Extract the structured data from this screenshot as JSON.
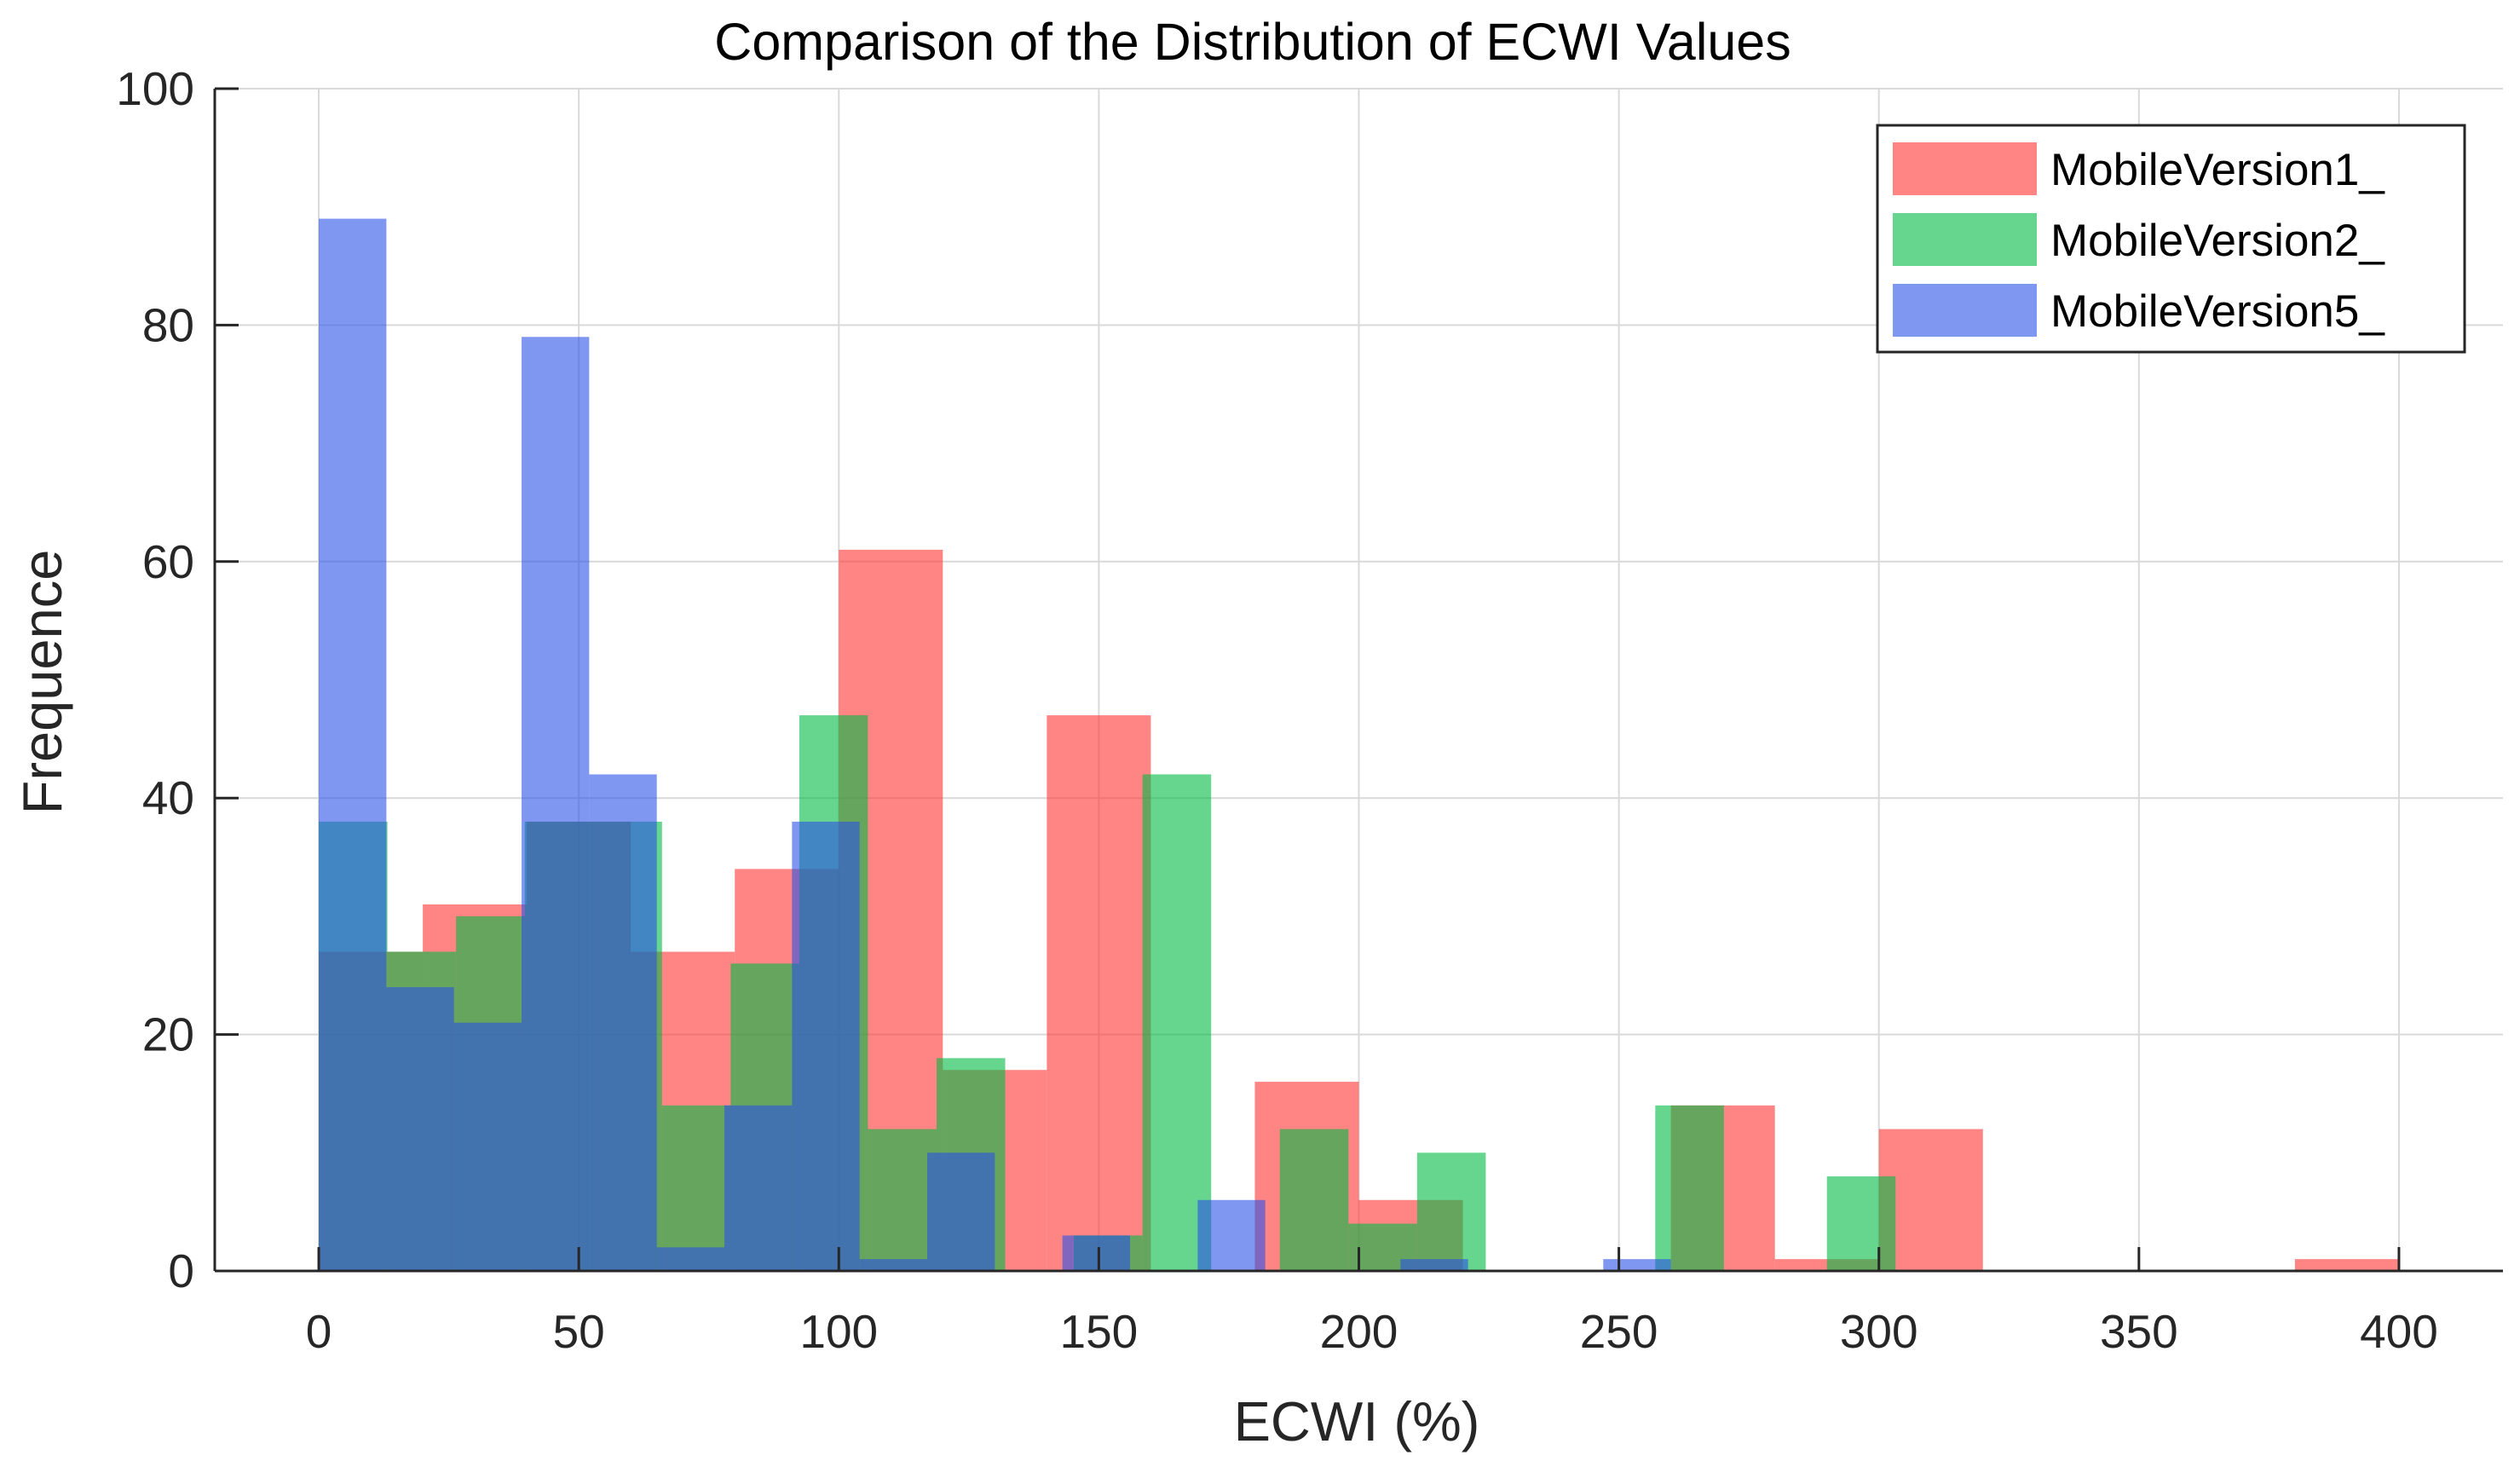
{
  "chart_data": {
    "type": "bar",
    "subtype": "overlapping-histogram",
    "title": "Comparison of the Distribution of ECWI Values",
    "xlabel": "ECWI (%)",
    "ylabel": "Frequence",
    "xlim": [
      -20,
      420
    ],
    "ylim": [
      0,
      100
    ],
    "xticks": [
      0,
      50,
      100,
      150,
      200,
      250,
      300,
      350,
      400
    ],
    "yticks": [
      0,
      20,
      40,
      60,
      80,
      100
    ],
    "grid": true,
    "legend_position": "top-right",
    "bar_opacity": 0.6,
    "series": [
      {
        "name": "MobileVersion1_",
        "color": "#ff3333",
        "bins": [
          {
            "start": 0,
            "end": 20,
            "value": 27
          },
          {
            "start": 20,
            "end": 40,
            "value": 31
          },
          {
            "start": 40,
            "end": 60,
            "value": 38
          },
          {
            "start": 60,
            "end": 80,
            "value": 27
          },
          {
            "start": 80,
            "end": 100,
            "value": 34
          },
          {
            "start": 100,
            "end": 120,
            "value": 61
          },
          {
            "start": 120,
            "end": 140,
            "value": 17
          },
          {
            "start": 140,
            "end": 160,
            "value": 47
          },
          {
            "start": 180,
            "end": 200,
            "value": 16
          },
          {
            "start": 200,
            "end": 220,
            "value": 6
          },
          {
            "start": 260,
            "end": 280,
            "value": 14
          },
          {
            "start": 280,
            "end": 300,
            "value": 1
          },
          {
            "start": 300,
            "end": 320,
            "value": 12
          },
          {
            "start": 380,
            "end": 400,
            "value": 1
          }
        ]
      },
      {
        "name": "MobileVersion2_",
        "color": "#00bb44",
        "bins": [
          {
            "start": 0,
            "end": 13.2,
            "value": 38
          },
          {
            "start": 13.2,
            "end": 26.4,
            "value": 27
          },
          {
            "start": 26.4,
            "end": 39.6,
            "value": 30
          },
          {
            "start": 39.6,
            "end": 52.8,
            "value": 38
          },
          {
            "start": 52.8,
            "end": 66,
            "value": 38
          },
          {
            "start": 66,
            "end": 79.2,
            "value": 14
          },
          {
            "start": 79.2,
            "end": 92.4,
            "value": 26
          },
          {
            "start": 92.4,
            "end": 105.6,
            "value": 47
          },
          {
            "start": 105.6,
            "end": 118.8,
            "value": 12
          },
          {
            "start": 118.8,
            "end": 132,
            "value": 18
          },
          {
            "start": 145.2,
            "end": 158.4,
            "value": 3
          },
          {
            "start": 158.4,
            "end": 171.6,
            "value": 42
          },
          {
            "start": 184.8,
            "end": 198,
            "value": 12
          },
          {
            "start": 198,
            "end": 211.2,
            "value": 4
          },
          {
            "start": 211.2,
            "end": 224.4,
            "value": 10
          },
          {
            "start": 257,
            "end": 270.2,
            "value": 14
          },
          {
            "start": 290,
            "end": 303.2,
            "value": 8
          }
        ]
      },
      {
        "name": "MobileVersion5_",
        "color": "#2a52e6",
        "bins": [
          {
            "start": 0,
            "end": 13,
            "value": 89
          },
          {
            "start": 13,
            "end": 26,
            "value": 24
          },
          {
            "start": 26,
            "end": 39,
            "value": 21
          },
          {
            "start": 39,
            "end": 52,
            "value": 79
          },
          {
            "start": 52,
            "end": 65,
            "value": 42
          },
          {
            "start": 65,
            "end": 78,
            "value": 2
          },
          {
            "start": 78,
            "end": 91,
            "value": 14
          },
          {
            "start": 91,
            "end": 104,
            "value": 38
          },
          {
            "start": 104,
            "end": 117,
            "value": 1
          },
          {
            "start": 117,
            "end": 130,
            "value": 10
          },
          {
            "start": 143,
            "end": 156,
            "value": 3
          },
          {
            "start": 169,
            "end": 182,
            "value": 6
          },
          {
            "start": 208,
            "end": 221,
            "value": 1
          },
          {
            "start": 247,
            "end": 260,
            "value": 1
          }
        ]
      }
    ]
  }
}
